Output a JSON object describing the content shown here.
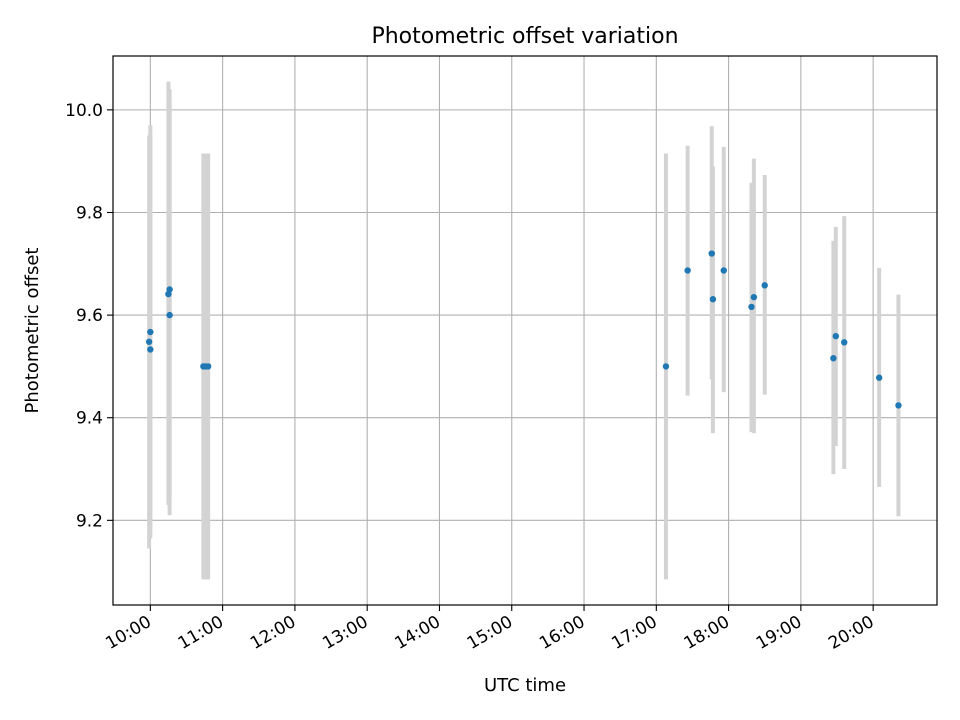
{
  "chart_data": {
    "type": "scatter",
    "title": "Photometric offset variation",
    "xlabel": "UTC time",
    "ylabel": "Photometric offset",
    "grid": true,
    "legend": "none",
    "xlim": [
      "09:29",
      "20:53"
    ],
    "ylim": [
      9.035,
      10.105
    ],
    "x_ticks": [
      "10:00",
      "11:00",
      "12:00",
      "13:00",
      "14:00",
      "15:00",
      "16:00",
      "17:00",
      "18:00",
      "19:00",
      "20:00"
    ],
    "y_ticks": [
      "9.2",
      "9.4",
      "9.6",
      "9.8",
      "10.0"
    ],
    "colors": {
      "point": "#1f77b4",
      "errorbar": "#d3d3d3",
      "grid": "#b0b0b0"
    },
    "series": [
      {
        "points": [
          {
            "x": "09:59",
            "y": 9.548,
            "ylow": 9.145,
            "yhigh": 9.95
          },
          {
            "x": "10:00",
            "y": 9.533,
            "ylow": 9.165,
            "yhigh": 9.97
          },
          {
            "x": "10:00",
            "y": 9.567,
            "ylow": 9.18,
            "yhigh": 9.955
          },
          {
            "x": "10:15",
            "y": 9.641,
            "ylow": 9.23,
            "yhigh": 10.055
          },
          {
            "x": "10:16",
            "y": 9.65,
            "ylow": 9.24,
            "yhigh": 10.04
          },
          {
            "x": "10:16",
            "y": 9.6,
            "ylow": 9.21,
            "yhigh": 10.02
          },
          {
            "x": "10:44",
            "y": 9.5,
            "ylow": 9.085,
            "yhigh": 9.915
          },
          {
            "x": "10:46",
            "y": 9.5,
            "ylow": 9.085,
            "yhigh": 9.915
          },
          {
            "x": "10:48",
            "y": 9.5,
            "ylow": 9.085,
            "yhigh": 9.915
          },
          {
            "x": "17:08",
            "y": 9.5,
            "ylow": 9.085,
            "yhigh": 9.915
          },
          {
            "x": "17:26",
            "y": 9.687,
            "ylow": 9.443,
            "yhigh": 9.93
          },
          {
            "x": "17:46",
            "y": 9.72,
            "ylow": 9.475,
            "yhigh": 9.968
          },
          {
            "x": "17:47",
            "y": 9.631,
            "ylow": 9.37,
            "yhigh": 9.89
          },
          {
            "x": "17:56",
            "y": 9.687,
            "ylow": 9.45,
            "yhigh": 9.928
          },
          {
            "x": "18:19",
            "y": 9.616,
            "ylow": 9.372,
            "yhigh": 9.858
          },
          {
            "x": "18:21",
            "y": 9.635,
            "ylow": 9.37,
            "yhigh": 9.905
          },
          {
            "x": "18:30",
            "y": 9.658,
            "ylow": 9.445,
            "yhigh": 9.873
          },
          {
            "x": "19:27",
            "y": 9.516,
            "ylow": 9.29,
            "yhigh": 9.745
          },
          {
            "x": "19:29",
            "y": 9.559,
            "ylow": 9.345,
            "yhigh": 9.772
          },
          {
            "x": "19:36",
            "y": 9.547,
            "ylow": 9.3,
            "yhigh": 9.793
          },
          {
            "x": "20:05",
            "y": 9.478,
            "ylow": 9.265,
            "yhigh": 9.692
          },
          {
            "x": "20:21",
            "y": 9.424,
            "ylow": 9.208,
            "yhigh": 9.64
          }
        ]
      }
    ]
  }
}
